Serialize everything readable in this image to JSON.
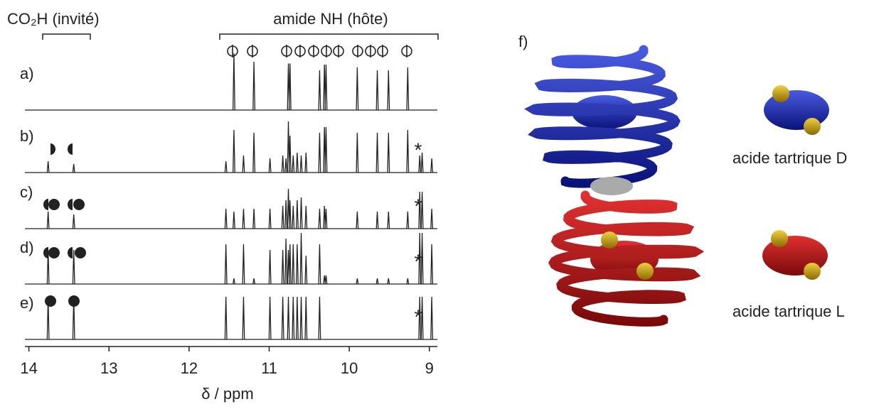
{
  "spectra": {
    "xlabel": "δ / ppm",
    "xlim": [
      14.05,
      8.9
    ],
    "xticks": [
      14,
      13,
      12,
      11,
      10,
      9
    ],
    "guest_bracket": "CO₂H (invité)",
    "host_bracket": "amide NH (hôte)",
    "traces": [
      {
        "label": "a)",
        "peaks": [
          11.44,
          11.19,
          10.76,
          10.74,
          10.37,
          10.31,
          10.29,
          9.9,
          9.65,
          9.51,
          9.27
        ],
        "heights": [
          1,
          0.85,
          0.82,
          0.82,
          0.7,
          0.8,
          0.8,
          0.75,
          0.7,
          0.7,
          0.75
        ]
      },
      {
        "label": "b)",
        "note": "*",
        "peaks": [
          13.76,
          13.44,
          11.54,
          11.44,
          11.32,
          11.19,
          10.99,
          10.83,
          10.79,
          10.76,
          10.74,
          10.7,
          10.65,
          10.6,
          10.54,
          10.37,
          10.31,
          10.29,
          9.9,
          9.65,
          9.51,
          9.27,
          9.12,
          9.09,
          8.97
        ],
        "heights": [
          0.2,
          0.15,
          0.2,
          0.75,
          0.3,
          0.7,
          0.25,
          0.3,
          0.25,
          0.9,
          0.65,
          0.3,
          0.35,
          0.3,
          0.35,
          0.7,
          0.8,
          0.8,
          0.7,
          0.7,
          0.7,
          0.75,
          0.3,
          0.35,
          0.25
        ]
      },
      {
        "label": "c)",
        "note": "*",
        "peaks": [
          13.76,
          13.44,
          11.54,
          11.44,
          11.32,
          11.19,
          10.99,
          10.83,
          10.79,
          10.76,
          10.74,
          10.7,
          10.65,
          10.6,
          10.54,
          10.37,
          10.31,
          10.29,
          9.9,
          9.65,
          9.51,
          9.27,
          9.12,
          9.09,
          8.97
        ],
        "heights": [
          0.3,
          0.25,
          0.35,
          0.3,
          0.35,
          0.35,
          0.35,
          0.4,
          0.5,
          0.7,
          0.5,
          0.4,
          0.5,
          0.55,
          0.4,
          0.35,
          0.4,
          0.35,
          0.3,
          0.3,
          0.3,
          0.3,
          0.65,
          0.65,
          0.35
        ]
      },
      {
        "label": "d)",
        "note": "*",
        "peaks": [
          13.76,
          13.44,
          11.54,
          11.44,
          11.32,
          11.19,
          10.99,
          10.83,
          10.79,
          10.76,
          10.74,
          10.7,
          10.65,
          10.6,
          10.54,
          10.37,
          10.31,
          10.29,
          9.9,
          9.65,
          9.51,
          9.27,
          9.12,
          9.09,
          8.97
        ],
        "heights": [
          0.6,
          0.6,
          0.7,
          0.1,
          0.7,
          0.1,
          0.6,
          0.6,
          0.8,
          0.6,
          0.7,
          0.7,
          0.7,
          0.9,
          0.5,
          0.7,
          0.15,
          0.15,
          0.1,
          0.1,
          0.1,
          0.1,
          0.9,
          0.9,
          0.7
        ]
      },
      {
        "label": "e)",
        "note": "*",
        "peaks": [
          13.76,
          13.44,
          11.54,
          11.32,
          10.99,
          10.83,
          10.76,
          10.7,
          10.65,
          10.6,
          10.54,
          10.37,
          9.12,
          9.09,
          8.97
        ],
        "heights": [
          0.75,
          0.75,
          0.75,
          0.75,
          0.75,
          0.75,
          0.75,
          0.75,
          0.75,
          0.75,
          0.75,
          0.75,
          0.75,
          0.75,
          0.75
        ]
      }
    ]
  },
  "model": {
    "label": "f)",
    "d_label": "acide tartrique D",
    "l_label": "acide tartrique L"
  }
}
